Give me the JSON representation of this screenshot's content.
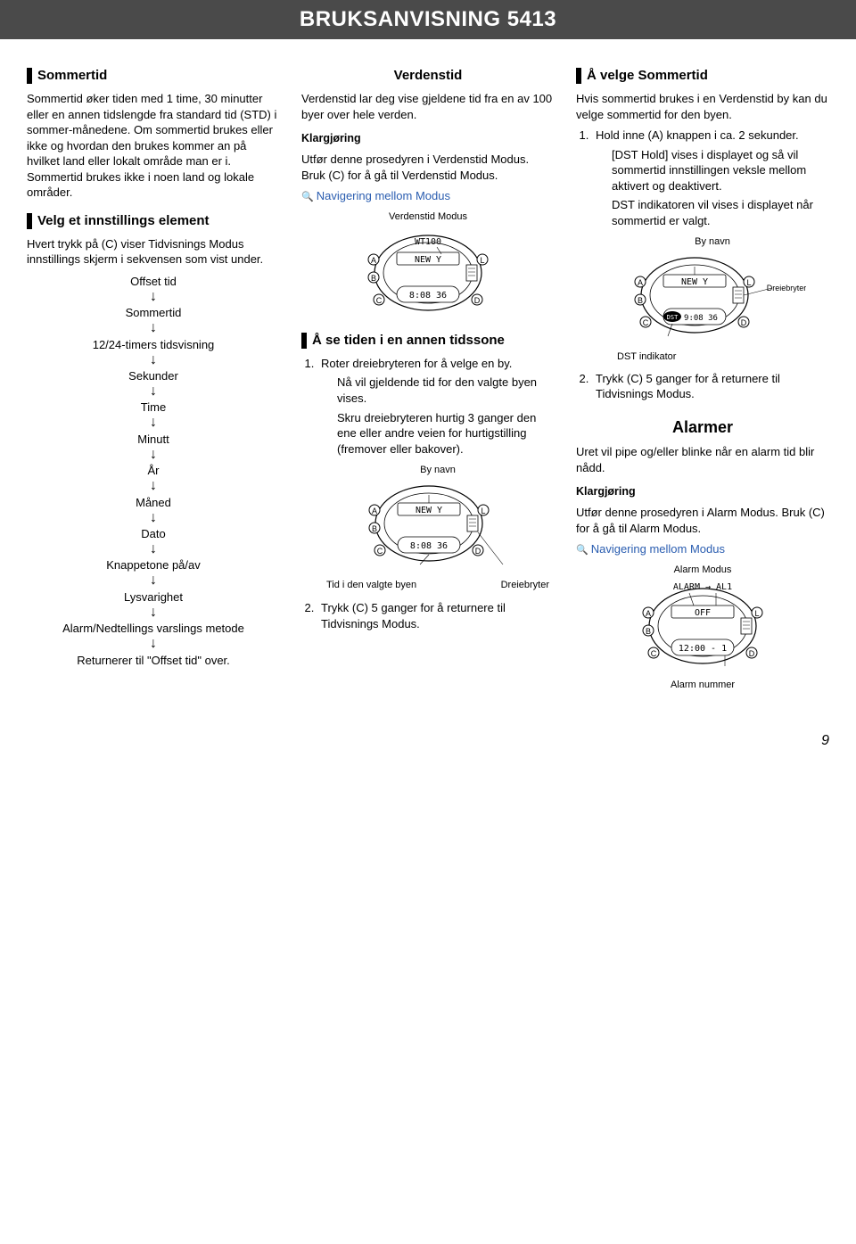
{
  "header": {
    "title": "BRUKSANVISNING 5413"
  },
  "page_number": "9",
  "col1": {
    "sommertid": {
      "title": "Sommertid",
      "body": "Sommertid øker tiden med 1 time, 30 minutter eller en annen tidslengde fra standard tid (STD) i sommer-månedene. Om sommertid brukes eller ikke og hvordan den brukes kommer an på hvilket land eller lokalt område man er i. Sommertid brukes ikke i noen land og lokale områder."
    },
    "velg": {
      "title": "Velg et innstillings element",
      "body": "Hvert trykk på (C) viser Tidvisnings Modus innstillings skjerm i sekvensen som vist under.",
      "flow": [
        "Offset tid",
        "Sommertid",
        "12/24-timers tidsvisning",
        "Sekunder",
        "Time",
        "Minutt",
        "År",
        "Måned",
        "Dato",
        "Knappetone på/av",
        "Lysvarighet",
        "Alarm/Nedtellings varslings metode"
      ],
      "flow_end": "Returnerer til  \"Offset tid\" over."
    }
  },
  "col2": {
    "verdenstid": {
      "title": "Verdenstid",
      "intro": "Verdenstid lar deg vise gjeldene tid fra en av 100 byer over hele verden.",
      "klarg_label": "Klargjøring",
      "klarg_body": "Utfør denne prosedyren i Verdenstid Modus. Bruk (C) for å gå til Verdenstid Modus.",
      "nav_link": "Navigering mellom Modus",
      "fig1_caption_top": "Verdenstid Modus",
      "fig1_displaytop": "WT100",
      "fig1_displaymid": "NEW  Y",
      "fig1_displaybot": "8:08 36"
    },
    "tidssone": {
      "title": "Å se tiden i en annen tidssone",
      "step1": "Roter dreiebryteren for å velge en by.",
      "step1_sub1": "Nå vil gjeldende tid for den valgte byen vises.",
      "step1_sub2": "Skru dreiebryteren hurtig 3 ganger den ene eller andre veien for hurtigstilling (fremover eller bakover).",
      "fig2_top": "By navn",
      "fig2_displaymid": "NEW  Y",
      "fig2_displaybot": "8:08 36",
      "fig2_bottom_left": "Tid i den valgte byen",
      "fig2_bottom_right": "Dreiebryter",
      "step2": "Trykk (C) 5 ganger for å returnere til Tidvisnings Modus."
    }
  },
  "col3": {
    "velge_sommertid": {
      "title": "Å velge Sommertid",
      "intro": "Hvis sommertid brukes i en Verdenstid by kan du velge sommertid for den byen.",
      "step1": "Hold inne (A) knappen i ca. 2 sekunder.",
      "step1_sub1": "[DST Hold] vises i displayet og så vil sommertid innstillingen veksle mellom aktivert og deaktivert.",
      "step1_sub2": "DST indikatoren vil vises i displayet når sommertid er valgt.",
      "fig_top": "By navn",
      "fig_displaymid": "NEW  Y",
      "fig_displaybot": "9:08 36",
      "fig_dst": "DST",
      "fig_right": "Dreiebryter",
      "fig_bottom": "DST indikator",
      "step2": "Trykk (C) 5 ganger for å returnere til Tidvisnings Modus."
    },
    "alarmer": {
      "title": "Alarmer",
      "intro": "Uret vil pipe og/eller blinke når en alarm tid blir nådd.",
      "klarg_label": "Klargjøring",
      "klarg_body": "Utfør denne prosedyren i Alarm Modus. Bruk (C) for å gå til Alarm Modus.",
      "nav_link": "Navigering mellom Modus",
      "fig_top": "Alarm Modus",
      "fig_displaytop": "ALARM → AL1",
      "fig_displaymid": "OFF",
      "fig_displaybot": "12:00 - 1",
      "fig_bottom": "Alarm nummer"
    }
  },
  "watch_colors": {
    "outline": "#000000",
    "screen_fill": "#ffffff",
    "label_font_size": 10
  }
}
